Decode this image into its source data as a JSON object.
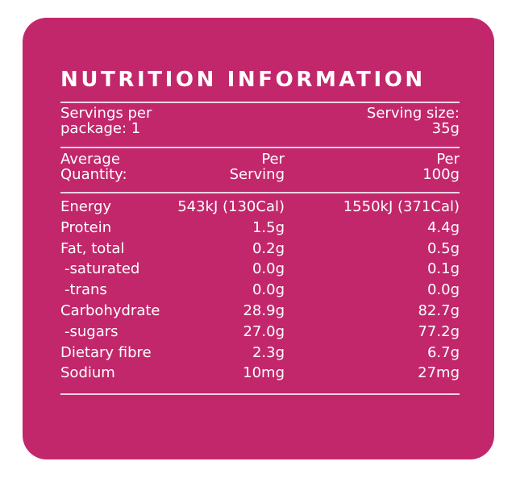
{
  "header": {
    "title": "NUTRITION INFORMATION"
  },
  "servings": {
    "per_package": [
      "Servings per",
      "package: 1"
    ],
    "serving_size": [
      "Serving size:",
      "35g"
    ]
  },
  "table": {
    "columns": [
      [
        "Average",
        "Quantity:"
      ],
      [
        "Per",
        "Serving"
      ],
      [
        "Per",
        "100g"
      ]
    ],
    "rows": [
      [
        "Energy",
        "543kJ (130Cal)",
        "1550kJ (371Cal)"
      ],
      [
        "Protein",
        "1.5g",
        "4.4g"
      ],
      [
        "Fat, total",
        "0.2g",
        "0.5g"
      ],
      [
        "-saturated",
        "0.0g",
        "0.1g"
      ],
      [
        "-trans",
        "0.0g",
        "0.0g"
      ],
      [
        "Carbohydrate",
        "28.9g",
        "82.7g"
      ],
      [
        "-sugars",
        "27.0g",
        "77.2g"
      ],
      [
        "Dietary fibre",
        "2.3g",
        "6.7g"
      ],
      [
        "Sodium",
        "10mg",
        "27mg"
      ]
    ]
  }
}
